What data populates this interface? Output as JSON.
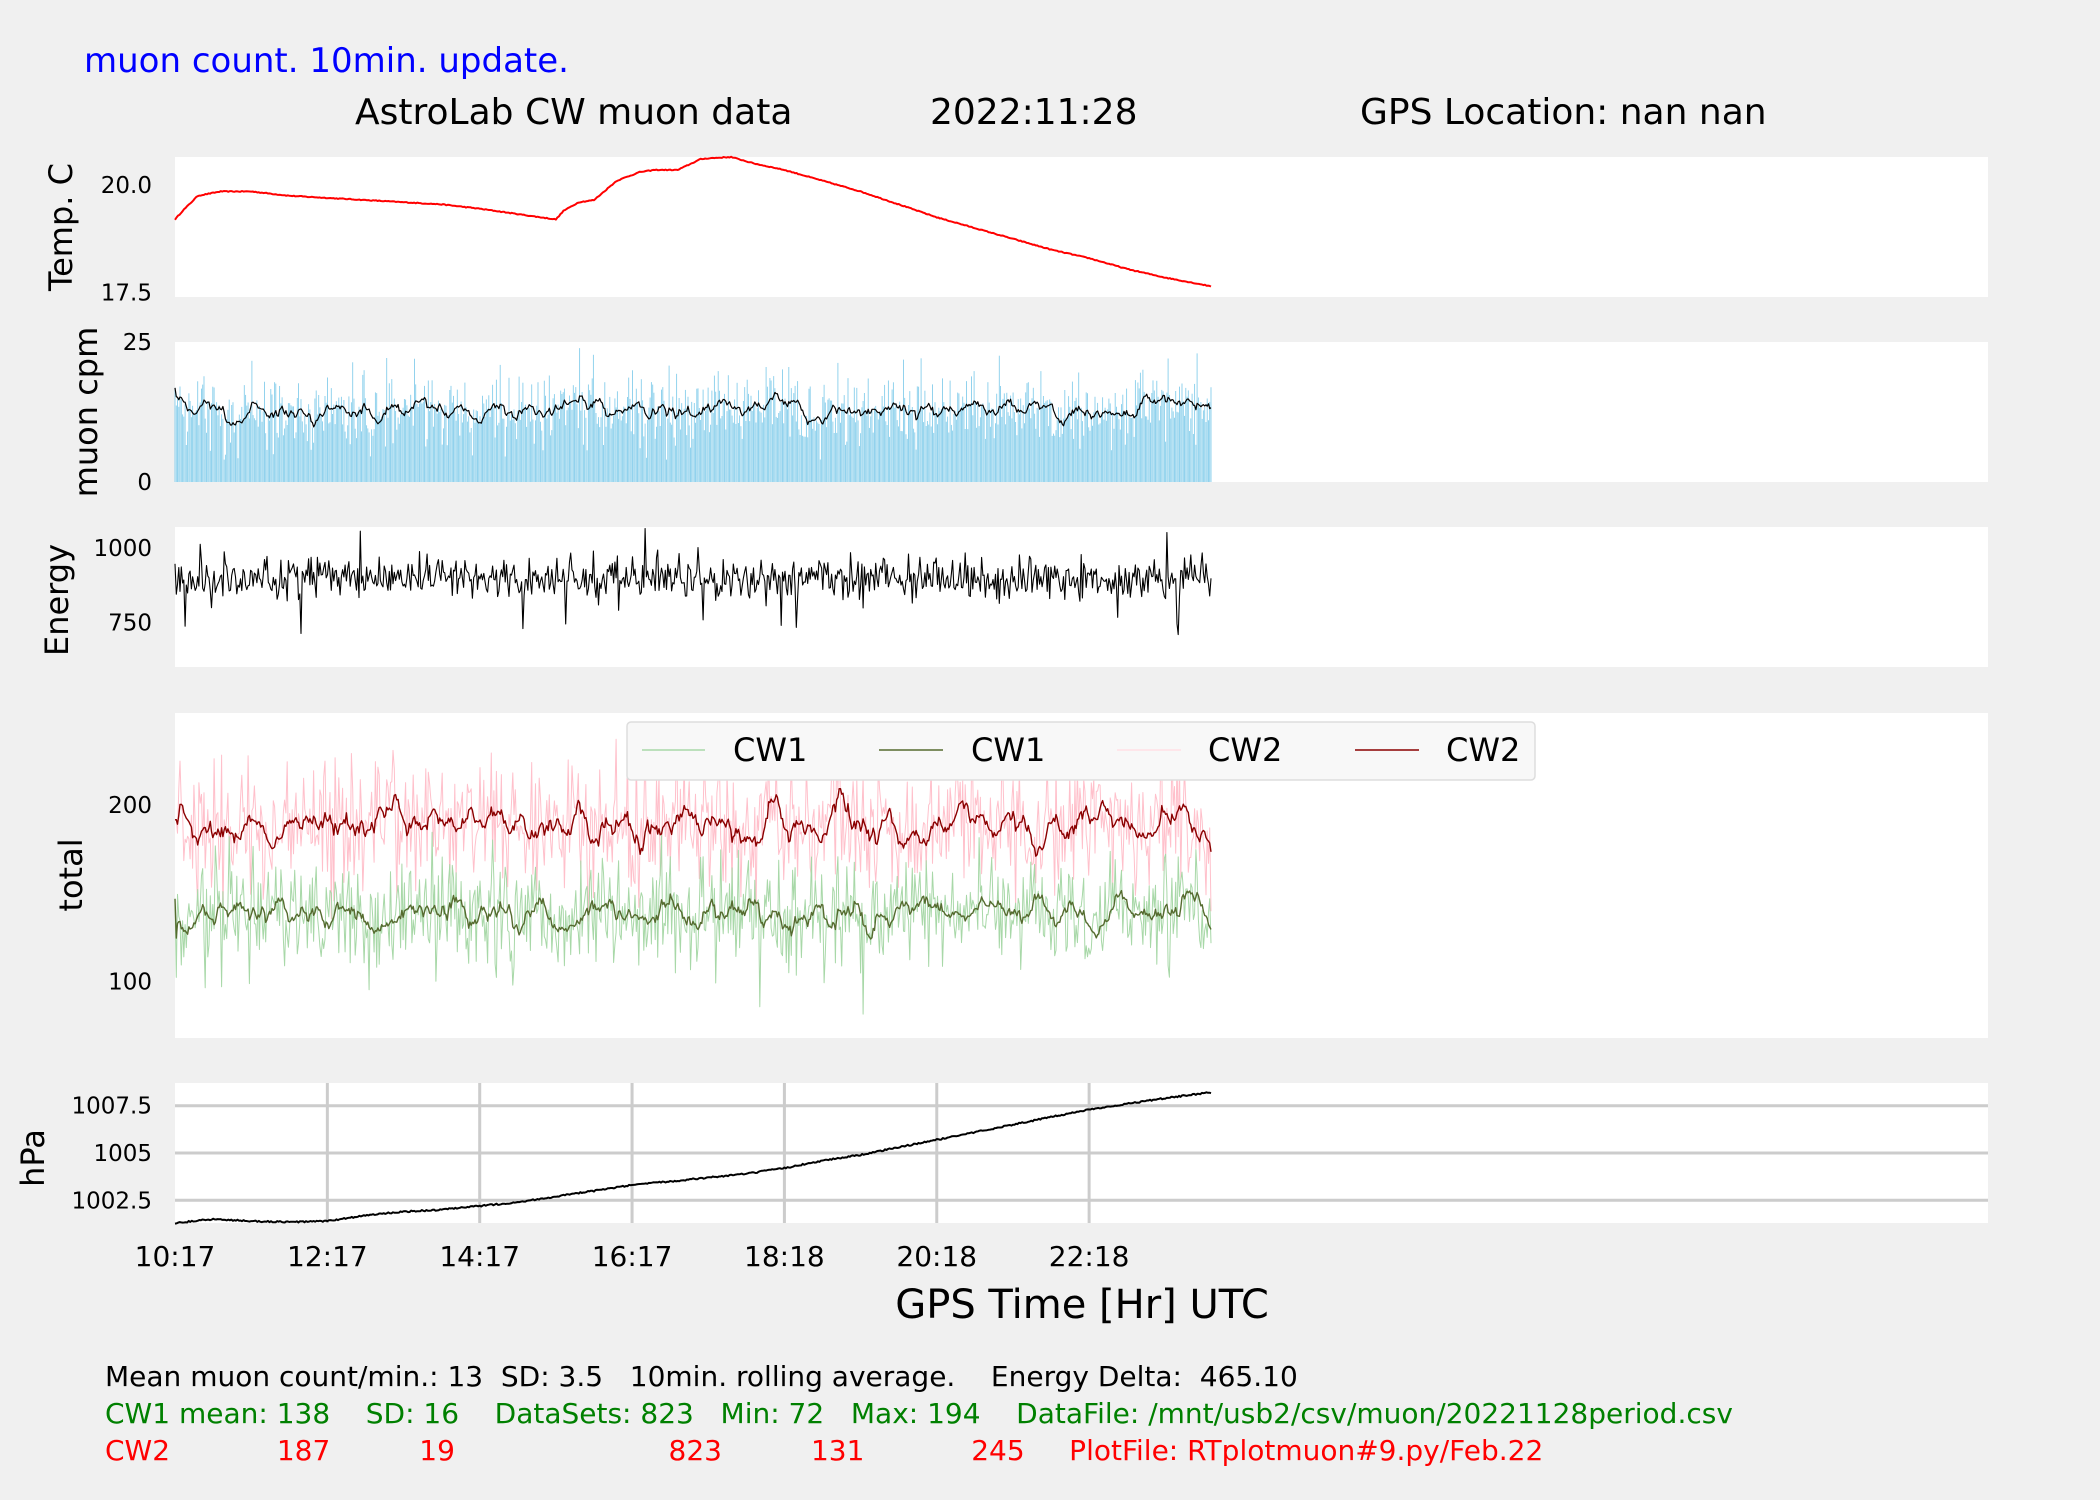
{
  "header": {
    "update_label": "muon count.  10min. update.",
    "title": "AstroLab CW muon data",
    "date": "2022:11:28",
    "gps_location": "GPS Location: nan   nan"
  },
  "colors": {
    "background": "#f0f0f0",
    "panel": "#ffffff",
    "grid": "#cccccc",
    "header_blue": "#0000ff",
    "temp_line": "#ff0000",
    "muon_bars": "#87ceeb",
    "cw1_raw": "#a8d8a8",
    "cw1_avg": "#556b2f",
    "cw2_raw": "#ffc0cb",
    "cw2_avg": "#8b0000",
    "cw1_text": "#008000",
    "cw2_text": "#ff0000"
  },
  "chart_data": [
    {
      "id": "temperature",
      "type": "line",
      "ylabel": "Temp. C",
      "yticks": [
        17.5,
        20.0
      ],
      "ylim": [
        17.4,
        20.65
      ],
      "color": "#ff0000",
      "x_hours": [
        0,
        0.1,
        0.3,
        0.6,
        1.0,
        1.5,
        2.0,
        2.5,
        3.0,
        3.5,
        4.0,
        4.4,
        4.6,
        4.8,
        5.0,
        5.1,
        5.3,
        5.5,
        5.8,
        6.1,
        6.3,
        6.6,
        6.9,
        7.0,
        7.3,
        7.6,
        8.0,
        8.5,
        9.0,
        9.5,
        10.0,
        10.5,
        11.0,
        11.5,
        12.0,
        12.5,
        13.0,
        13.6
      ],
      "y": [
        19.2,
        19.4,
        19.75,
        19.85,
        19.85,
        19.75,
        19.7,
        19.65,
        19.6,
        19.55,
        19.45,
        19.35,
        19.3,
        19.25,
        19.2,
        19.4,
        19.6,
        19.65,
        20.1,
        20.3,
        20.35,
        20.35,
        20.6,
        20.62,
        20.65,
        20.5,
        20.35,
        20.1,
        19.85,
        19.55,
        19.25,
        19.0,
        18.75,
        18.5,
        18.3,
        18.05,
        17.85,
        17.65
      ]
    },
    {
      "id": "muon_cpm",
      "type": "bar+line",
      "ylabel": "muon cpm",
      "yticks": [
        0,
        25
      ],
      "ylim": [
        0,
        25
      ],
      "mean": 13,
      "sd": 3.5,
      "bar_color": "#87ceeb",
      "avg_color": "#000000"
    },
    {
      "id": "energy",
      "type": "line",
      "ylabel": "Energy",
      "yticks": [
        750,
        1000
      ],
      "ylim": [
        600,
        1070
      ],
      "mean": 900,
      "color": "#000000"
    },
    {
      "id": "totals",
      "type": "line",
      "ylabel": "total",
      "yticks": [
        100,
        200
      ],
      "ylim": [
        68,
        252
      ],
      "legend_position": "top-center",
      "series": [
        {
          "name": "CW1",
          "kind": "raw",
          "mean": 138,
          "sd": 16,
          "min": 72,
          "max": 194,
          "color": "#a8d8a8"
        },
        {
          "name": "CW1",
          "kind": "rolling-average",
          "mean": 138,
          "color": "#556b2f"
        },
        {
          "name": "CW2",
          "kind": "raw",
          "mean": 187,
          "sd": 19,
          "min": 131,
          "max": 245,
          "color": "#ffc0cb"
        },
        {
          "name": "CW2",
          "kind": "rolling-average",
          "mean": 187,
          "color": "#8b0000"
        }
      ]
    },
    {
      "id": "pressure",
      "type": "line",
      "ylabel": "hPa",
      "yticks": [
        1002.5,
        1005.0,
        1007.5
      ],
      "ylim": [
        1001.3,
        1008.7
      ],
      "grid": true,
      "color": "#000000",
      "x_hours": [
        0,
        0.5,
        1.0,
        1.5,
        2.0,
        2.5,
        3.0,
        3.5,
        4.0,
        4.5,
        5.0,
        5.5,
        6.0,
        6.5,
        7.0,
        7.5,
        8.0,
        8.5,
        9.0,
        9.5,
        10.0,
        10.5,
        11.0,
        11.5,
        12.0,
        12.5,
        13.0,
        13.6
      ],
      "y": [
        1001.3,
        1001.5,
        1001.4,
        1001.35,
        1001.4,
        1001.7,
        1001.9,
        1002.0,
        1002.2,
        1002.4,
        1002.7,
        1003.0,
        1003.3,
        1003.5,
        1003.7,
        1003.9,
        1004.2,
        1004.6,
        1004.9,
        1005.3,
        1005.7,
        1006.1,
        1006.5,
        1006.9,
        1007.3,
        1007.6,
        1007.9,
        1008.2
      ]
    }
  ],
  "x_axis": {
    "label": "GPS Time  [Hr] UTC",
    "ticks": [
      "10:17",
      "12:17",
      "14:17",
      "16:17",
      "18:18",
      "20:18",
      "22:18"
    ],
    "tick_hours": [
      0,
      2,
      4,
      6,
      8,
      10,
      12
    ],
    "xlim_hours": [
      0,
      23.8
    ],
    "data_end_hours": 13.6
  },
  "footer": {
    "line1": "Mean muon count/min.: 13  SD: 3.5   10min. rolling average.    Energy Delta:  465.10",
    "line2": "CW1 mean: 138    SD: 16    DataSets: 823   Min: 72   Max: 194    DataFile: /mnt/usb2/csv/muon/20221128period.csv",
    "line3": "CW2            187          19                        823          131            245     PlotFile: RTplotmuon#9.py/Feb.22"
  }
}
